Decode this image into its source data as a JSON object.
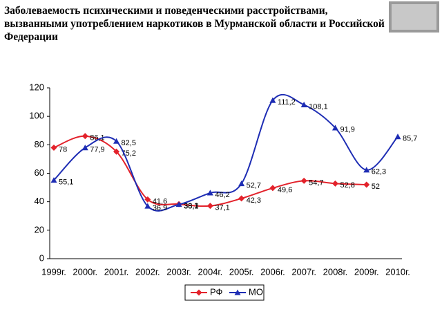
{
  "chart_data": {
    "type": "line",
    "title": "Заболеваемость психическими и поведенческими расстройствами, вызванными  употреблением наркотиков в Мурманской области и Российской Федерации",
    "categories": [
      "1999г.",
      "2000г.",
      "2001г.",
      "2002г.",
      "2003г.",
      "2004г.",
      "2005г.",
      "2006г.",
      "2007г.",
      "2008г.",
      "2009г.",
      "2010г."
    ],
    "series": [
      {
        "name": "РФ",
        "color": "#e3222b",
        "marker": "diamond",
        "values": [
          78,
          86.1,
          75.2,
          41.6,
          38.3,
          37.1,
          42.3,
          49.6,
          54.7,
          52.8,
          52,
          null
        ],
        "value_labels": [
          "78",
          "86,1",
          "75,2",
          "41,6",
          "38,3",
          "37,1",
          "42,3",
          "49,6",
          "54,7",
          "52,8",
          "52",
          null
        ]
      },
      {
        "name": "МО",
        "color": "#1e2db4",
        "marker": "triangle",
        "values": [
          55.1,
          77.9,
          82.5,
          36.9,
          38.1,
          46.2,
          52.7,
          111.2,
          108.1,
          91.9,
          62.3,
          85.7
        ],
        "value_labels": [
          "55,1",
          "77,9",
          "82,5",
          "36,9",
          "38,1",
          "46,2",
          "52,7",
          "111,2",
          "108,1",
          "91,9",
          "62,3",
          "85,7"
        ]
      }
    ],
    "ylim": [
      0,
      120
    ],
    "yticks": [
      0,
      20,
      40,
      60,
      80,
      100,
      120
    ],
    "smooth": true,
    "legend": "bottom"
  }
}
